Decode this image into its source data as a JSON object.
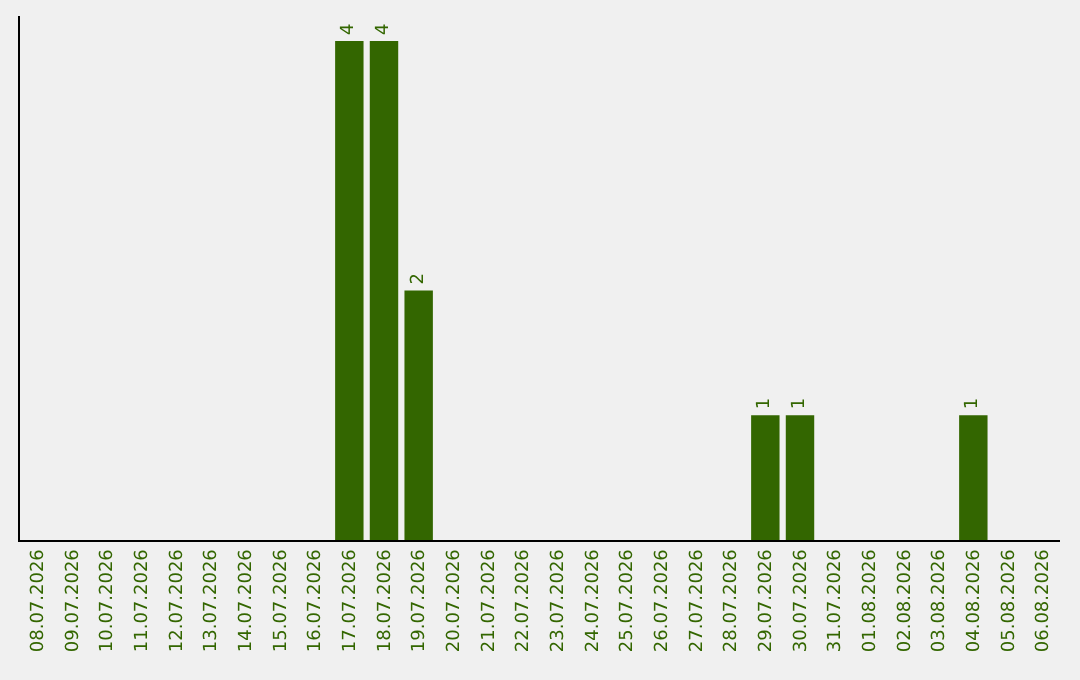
{
  "chart_data": {
    "type": "bar",
    "color": "#336600",
    "categories": [
      "08.07.2026",
      "09.07.2026",
      "10.07.2026",
      "11.07.2026",
      "12.07.2026",
      "13.07.2026",
      "14.07.2026",
      "15.07.2026",
      "16.07.2026",
      "17.07.2026",
      "18.07.2026",
      "19.07.2026",
      "20.07.2026",
      "21.07.2026",
      "22.07.2026",
      "23.07.2026",
      "24.07.2026",
      "25.07.2026",
      "26.07.2026",
      "27.07.2026",
      "28.07.2026",
      "29.07.2026",
      "30.07.2026",
      "31.07.2026",
      "01.08.2026",
      "02.08.2026",
      "03.08.2026",
      "04.08.2026",
      "05.08.2026",
      "06.08.2026"
    ],
    "values": [
      0,
      0,
      0,
      0,
      0,
      0,
      0,
      0,
      0,
      4,
      4,
      2,
      0,
      0,
      0,
      0,
      0,
      0,
      0,
      0,
      0,
      1,
      1,
      0,
      0,
      0,
      0,
      1,
      0,
      0
    ],
    "value_labels": [
      null,
      null,
      null,
      null,
      null,
      null,
      null,
      null,
      null,
      "4",
      "4",
      "2",
      null,
      null,
      null,
      null,
      null,
      null,
      null,
      null,
      null,
      "1",
      "1",
      null,
      null,
      null,
      null,
      "1",
      null,
      null
    ],
    "tick_labels": "x",
    "grid": false,
    "legend": false
  }
}
